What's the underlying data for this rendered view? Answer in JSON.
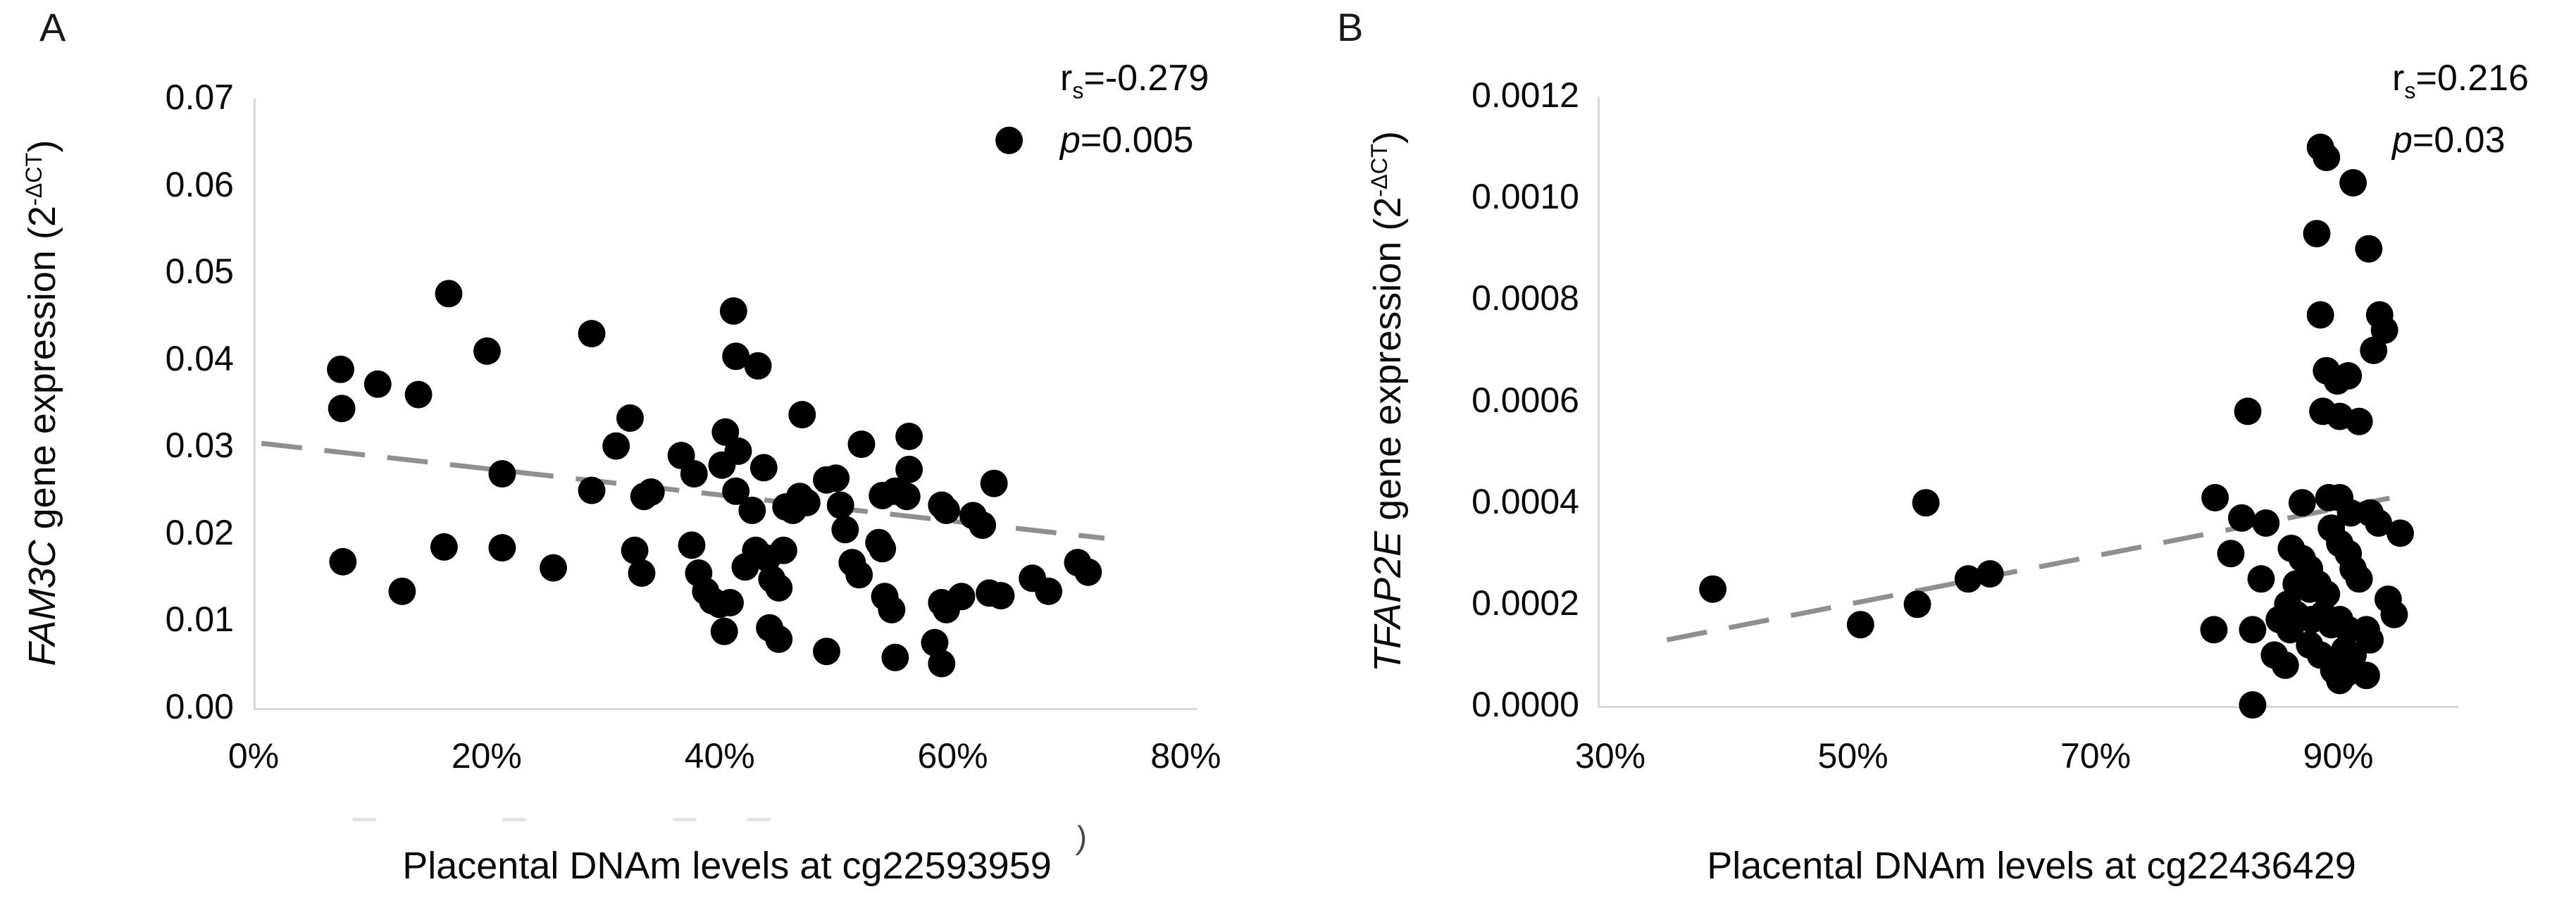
{
  "figure": {
    "background": "#ffffff",
    "axis_color": "#d9d9d9",
    "stray_mark": ")",
    "faint_marks": [
      {
        "x": 500
      },
      {
        "x": 713
      },
      {
        "x": 955
      },
      {
        "x": 1060
      }
    ]
  },
  "chart_data": [
    {
      "panel": "A",
      "type": "scatter",
      "xlabel": "Placental DNAm levels at cg22593959",
      "ylabel_gene": "FAM3C",
      "ylabel_rest": " gene expression (2",
      "ylabel_sup": "-ΔCT",
      "ylabel_close": ")",
      "annotation": {
        "r_prefix": "r",
        "r_sub": "s",
        "r_eq": "=-0.279",
        "p_label": "p",
        "p_eq": "=0.005"
      },
      "xlim_pct": [
        0,
        81
      ],
      "ylim": [
        0,
        0.07
      ],
      "grid": false,
      "legend": null,
      "xticks": {
        "values": [
          0,
          20,
          40,
          60,
          80
        ],
        "labels": [
          "0%",
          "20%",
          "40%",
          "60%",
          "80%"
        ]
      },
      "yticks": {
        "values": [
          0,
          0.01,
          0.02,
          0.03,
          0.04,
          0.05,
          0.06,
          0.07
        ],
        "labels": [
          "0.00",
          "0.01",
          "0.02",
          "0.03",
          "0.04",
          "0.05",
          "0.06",
          "0.07"
        ]
      },
      "trendline": {
        "x1": 0.5,
        "y1": 0.0304,
        "x2": 73,
        "y2": 0.0195,
        "style": "dashed",
        "color": "#8f8f8f"
      },
      "point_color": "#000000",
      "points": [
        [
          16.6,
          0.0476
        ],
        [
          19.9,
          0.041
        ],
        [
          7.3,
          0.0389
        ],
        [
          10.5,
          0.0372
        ],
        [
          28.9,
          0.043
        ],
        [
          64.8,
          0.0652
        ],
        [
          41.1,
          0.0456
        ],
        [
          41.3,
          0.0404
        ],
        [
          43.2,
          0.0393
        ],
        [
          7.4,
          0.0344
        ],
        [
          14,
          0.036
        ],
        [
          21.2,
          0.0184
        ],
        [
          7.5,
          0.0168
        ],
        [
          12.6,
          0.0134
        ],
        [
          16.2,
          0.0185
        ],
        [
          25.6,
          0.0161
        ],
        [
          21.2,
          0.0269
        ],
        [
          28.9,
          0.025
        ],
        [
          32.2,
          0.0333
        ],
        [
          31,
          0.0301
        ],
        [
          33.4,
          0.0243
        ],
        [
          34,
          0.0248
        ],
        [
          36.6,
          0.029
        ],
        [
          37.7,
          0.0269
        ],
        [
          40.1,
          0.0279
        ],
        [
          32.6,
          0.0181
        ],
        [
          33.2,
          0.0155
        ],
        [
          37.5,
          0.0187
        ],
        [
          38.1,
          0.0155
        ],
        [
          38.7,
          0.0134
        ],
        [
          39.3,
          0.0123
        ],
        [
          39.9,
          0.0119
        ],
        [
          47,
          0.0337
        ],
        [
          41.5,
          0.0295
        ],
        [
          43.7,
          0.0276
        ],
        [
          41.3,
          0.0249
        ],
        [
          46.8,
          0.0243
        ],
        [
          47.4,
          0.0236
        ],
        [
          49.1,
          0.0262
        ],
        [
          49.9,
          0.0264
        ],
        [
          52.1,
          0.0303
        ],
        [
          56.2,
          0.0312
        ],
        [
          56.2,
          0.0274
        ],
        [
          50.3,
          0.0233
        ],
        [
          42.7,
          0.0227
        ],
        [
          45.6,
          0.0231
        ],
        [
          46.2,
          0.0227
        ],
        [
          40.4,
          0.0317
        ],
        [
          53.9,
          0.0244
        ],
        [
          55,
          0.0249
        ],
        [
          56,
          0.0243
        ],
        [
          59,
          0.0233
        ],
        [
          59.4,
          0.0227
        ],
        [
          61.7,
          0.0221
        ],
        [
          62.5,
          0.021
        ],
        [
          63.5,
          0.0258
        ],
        [
          50.7,
          0.0205
        ],
        [
          53.6,
          0.019
        ],
        [
          53.9,
          0.0183
        ],
        [
          43,
          0.0181
        ],
        [
          44,
          0.0172
        ],
        [
          45.4,
          0.0181
        ],
        [
          42.1,
          0.0162
        ],
        [
          44.4,
          0.0148
        ],
        [
          45,
          0.0138
        ],
        [
          51.3,
          0.0167
        ],
        [
          51.9,
          0.0153
        ],
        [
          54.1,
          0.0128
        ],
        [
          54.7,
          0.0113
        ],
        [
          59,
          0.0121
        ],
        [
          59.4,
          0.0113
        ],
        [
          60.7,
          0.0128
        ],
        [
          63.1,
          0.0132
        ],
        [
          64.1,
          0.0129
        ],
        [
          66.8,
          0.0149
        ],
        [
          68.2,
          0.0134
        ],
        [
          70.7,
          0.0167
        ],
        [
          71.6,
          0.0156
        ],
        [
          40.8,
          0.0121
        ],
        [
          44.2,
          0.0092
        ],
        [
          45,
          0.0079
        ],
        [
          49.1,
          0.0065
        ],
        [
          55,
          0.0058
        ],
        [
          58.4,
          0.0075
        ],
        [
          59,
          0.0051
        ],
        [
          40.3,
          0.0088
        ]
      ]
    },
    {
      "panel": "B",
      "type": "scatter",
      "xlabel": "Placental DNAm levels at cg22436429",
      "ylabel_gene": "TFAP2E",
      "ylabel_rest": " gene expression (2",
      "ylabel_sup": "-ΔCT",
      "ylabel_close": ")",
      "annotation": {
        "r_prefix": "r",
        "r_sub": "s",
        "r_eq": "=0.216",
        "p_label": "p",
        "p_eq": "=0.03"
      },
      "xlim_pct": [
        28.95,
        99.9
      ],
      "ylim": [
        0,
        0.0012
      ],
      "grid": false,
      "legend": null,
      "xticks": {
        "values": [
          30,
          50,
          70,
          90
        ],
        "labels": [
          "30%",
          "50%",
          "70%",
          "90%"
        ]
      },
      "yticks": {
        "values": [
          0,
          0.0002,
          0.0004,
          0.0006,
          0.0008,
          0.001,
          0.0012
        ],
        "labels": [
          "0.0000",
          "0.0002",
          "0.0004",
          "0.0006",
          "0.0008",
          "0.0010",
          "0.0012"
        ]
      },
      "trendline": {
        "x1": 34.5,
        "y1": 0.00013,
        "x2": 95.5,
        "y2": 0.000415,
        "style": "dashed",
        "color": "#8f8f8f"
      },
      "point_color": "#000000",
      "points": [
        [
          88.5,
          0.0011
        ],
        [
          89,
          0.00108
        ],
        [
          91.2,
          0.00103
        ],
        [
          88.2,
          0.00093
        ],
        [
          92.5,
          0.0009
        ],
        [
          88.5,
          0.00077
        ],
        [
          93.4,
          0.00077
        ],
        [
          93.8,
          0.00074
        ],
        [
          92.9,
          0.0007
        ],
        [
          89,
          0.00066
        ],
        [
          89.9,
          0.00064
        ],
        [
          90.8,
          0.00065
        ],
        [
          82.5,
          0.00058
        ],
        [
          88.7,
          0.00058
        ],
        [
          90.1,
          0.00057
        ],
        [
          91.7,
          0.00056
        ],
        [
          38.3,
          0.00023
        ],
        [
          55.9,
          0.0004
        ],
        [
          50.5,
          0.00016
        ],
        [
          55.2,
          0.0002
        ],
        [
          59.4,
          0.00025
        ],
        [
          61.2,
          0.00026
        ],
        [
          79.8,
          0.00041
        ],
        [
          82,
          0.00037
        ],
        [
          84,
          0.00036
        ],
        [
          87,
          0.0004
        ],
        [
          89.2,
          0.00041
        ],
        [
          90.1,
          0.00041
        ],
        [
          91,
          0.00038
        ],
        [
          92.6,
          0.00038
        ],
        [
          93.3,
          0.00036
        ],
        [
          95.1,
          0.00034
        ],
        [
          81.1,
          0.0003
        ],
        [
          83.6,
          0.00025
        ],
        [
          86.1,
          0.00031
        ],
        [
          87,
          0.00029
        ],
        [
          87.6,
          0.00027
        ],
        [
          89.4,
          0.00035
        ],
        [
          90.1,
          0.00032
        ],
        [
          90.8,
          0.0003
        ],
        [
          86.5,
          0.00024
        ],
        [
          87.6,
          0.00023
        ],
        [
          88.3,
          0.00024
        ],
        [
          89,
          0.00022
        ],
        [
          91.2,
          0.00027
        ],
        [
          91.7,
          0.00025
        ],
        [
          85.8,
          0.0002
        ],
        [
          86.5,
          0.00018
        ],
        [
          87.8,
          0.00017
        ],
        [
          88.7,
          0.00018
        ],
        [
          85.1,
          0.00017
        ],
        [
          86,
          0.00015
        ],
        [
          89.4,
          0.00016
        ],
        [
          90.1,
          0.00017
        ],
        [
          90.8,
          0.00015
        ],
        [
          92.3,
          0.00015
        ],
        [
          94.1,
          0.00021
        ],
        [
          94.6,
          0.00018
        ],
        [
          82.9,
          0.00015
        ],
        [
          84.7,
          0.0001
        ],
        [
          85.6,
          8e-05
        ],
        [
          87.6,
          0.00012
        ],
        [
          88.5,
          0.0001
        ],
        [
          90.5,
          0.00011
        ],
        [
          91.2,
          0.0001
        ],
        [
          92.6,
          0.00013
        ],
        [
          82.9,
          2e-06
        ],
        [
          89.6,
          7e-05
        ],
        [
          90.1,
          5e-05
        ],
        [
          90.7,
          6.5e-05
        ],
        [
          92.3,
          6e-05
        ],
        [
          79.7,
          0.00015
        ]
      ]
    }
  ]
}
